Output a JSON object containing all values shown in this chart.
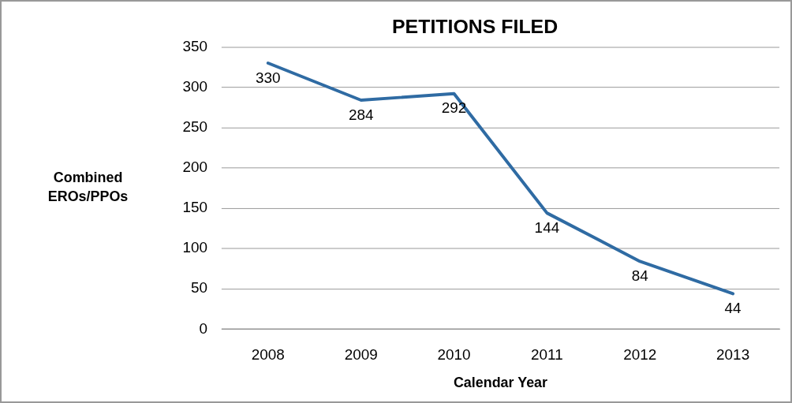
{
  "chart_data": {
    "type": "line",
    "title": "PETITIONS FILED",
    "xlabel": "Calendar Year",
    "ylabel": "Combined EROs/PPOs",
    "categories": [
      "2008",
      "2009",
      "2010",
      "2011",
      "2012",
      "2013"
    ],
    "series": [
      {
        "color": "#2f6ba3",
        "values": [
          330,
          284,
          292,
          144,
          84,
          44
        ]
      }
    ],
    "ylim": [
      0,
      350
    ],
    "yticks": [
      0,
      50,
      100,
      150,
      200,
      250,
      300,
      350
    ],
    "grid": "y",
    "legend": false,
    "marker": "none",
    "line_style": "solid",
    "data_labels": true
  }
}
